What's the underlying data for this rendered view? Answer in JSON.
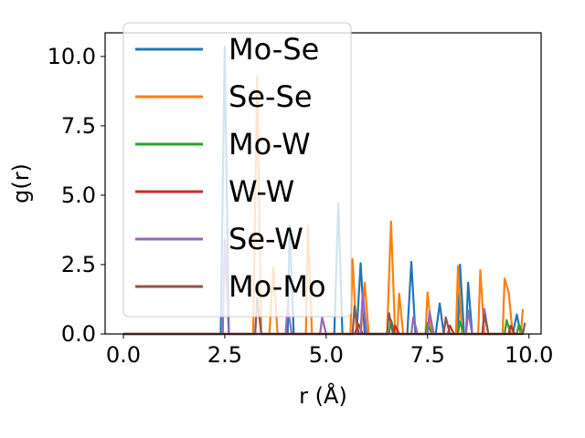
{
  "chart_data": {
    "type": "line",
    "title": "",
    "xlabel": "r (Å)",
    "ylabel": "g(r)",
    "xlim": [
      -0.45,
      10.3
    ],
    "ylim": [
      0,
      10.85
    ],
    "xticks": [
      0.0,
      2.5,
      5.0,
      7.5,
      10.0
    ],
    "xtick_labels": [
      "0.0",
      "2.5",
      "5.0",
      "7.5",
      "10.0"
    ],
    "yticks": [
      0.0,
      2.5,
      5.0,
      7.5,
      10.0
    ],
    "ytick_labels": [
      "0.0",
      "2.5",
      "5.0",
      "7.5",
      "10.0"
    ],
    "grid": false,
    "legend_position": "upper-left",
    "series": [
      {
        "name": "Mo-Se",
        "color": "#1f77b4",
        "points": [
          [
            0,
            0
          ],
          [
            2.4,
            0
          ],
          [
            2.5,
            10.35
          ],
          [
            2.6,
            0
          ],
          [
            4.05,
            0
          ],
          [
            4.1,
            3.9
          ],
          [
            4.2,
            0
          ],
          [
            5.2,
            0
          ],
          [
            5.3,
            4.7
          ],
          [
            5.4,
            0
          ],
          [
            5.75,
            0
          ],
          [
            5.85,
            2.55
          ],
          [
            5.95,
            0
          ],
          [
            7.0,
            0
          ],
          [
            7.1,
            2.6
          ],
          [
            7.2,
            0
          ],
          [
            7.7,
            0
          ],
          [
            7.8,
            1.1
          ],
          [
            7.9,
            0
          ],
          [
            8.25,
            0
          ],
          [
            8.3,
            2.5
          ],
          [
            8.4,
            0
          ],
          [
            8.45,
            0
          ],
          [
            8.5,
            1.85
          ],
          [
            8.6,
            0
          ],
          [
            9.6,
            0
          ],
          [
            9.7,
            0.7
          ],
          [
            9.8,
            0
          ]
        ]
      },
      {
        "name": "Se-Se",
        "color": "#ff7f0e",
        "points": [
          [
            0,
            0
          ],
          [
            3.2,
            0
          ],
          [
            3.3,
            9.3
          ],
          [
            3.4,
            0
          ],
          [
            3.6,
            0
          ],
          [
            3.7,
            2.4
          ],
          [
            3.8,
            0
          ],
          [
            4.5,
            0
          ],
          [
            4.55,
            3.9
          ],
          [
            4.65,
            0
          ],
          [
            5.6,
            0
          ],
          [
            5.65,
            2.7
          ],
          [
            5.75,
            0
          ],
          [
            5.85,
            0
          ],
          [
            5.95,
            1.85
          ],
          [
            6.05,
            0
          ],
          [
            6.5,
            0
          ],
          [
            6.6,
            4.05
          ],
          [
            6.7,
            0
          ],
          [
            6.75,
            0
          ],
          [
            6.8,
            1.45
          ],
          [
            6.9,
            0
          ],
          [
            7.45,
            0
          ],
          [
            7.5,
            1.5
          ],
          [
            7.6,
            0
          ],
          [
            8.2,
            0
          ],
          [
            8.25,
            2.45
          ],
          [
            8.35,
            0
          ],
          [
            8.75,
            0
          ],
          [
            8.8,
            2.3
          ],
          [
            8.9,
            0
          ],
          [
            9.35,
            0
          ],
          [
            9.4,
            2.0
          ],
          [
            9.5,
            1.5
          ],
          [
            9.6,
            0
          ],
          [
            9.8,
            0
          ],
          [
            9.85,
            0.9
          ]
        ]
      },
      {
        "name": "Mo-W",
        "color": "#2ca02c",
        "points": [
          [
            0,
            0
          ],
          [
            6.55,
            0
          ],
          [
            6.6,
            0.5
          ],
          [
            6.7,
            0
          ],
          [
            7.45,
            0
          ],
          [
            7.5,
            0.4
          ],
          [
            7.6,
            0
          ],
          [
            8.25,
            0
          ],
          [
            8.3,
            0.45
          ],
          [
            8.4,
            0
          ],
          [
            9.4,
            0
          ],
          [
            9.45,
            0.5
          ],
          [
            9.55,
            0
          ],
          [
            9.7,
            0
          ],
          [
            9.75,
            0.35
          ],
          [
            9.85,
            0
          ]
        ]
      },
      {
        "name": "W-W",
        "color": "#d62728",
        "points": [
          [
            0,
            0
          ],
          [
            5.7,
            0
          ],
          [
            5.8,
            0.35
          ],
          [
            5.9,
            0
          ],
          [
            6.65,
            0
          ],
          [
            6.7,
            0.3
          ],
          [
            6.8,
            0
          ],
          [
            8.0,
            0
          ],
          [
            8.05,
            0.3
          ],
          [
            8.15,
            0
          ],
          [
            9.5,
            0
          ],
          [
            9.55,
            0.3
          ],
          [
            9.65,
            0
          ]
        ]
      },
      {
        "name": "Se-W",
        "color": "#9467bd",
        "points": [
          [
            0,
            0
          ],
          [
            2.45,
            0
          ],
          [
            2.5,
            3.4
          ],
          [
            2.6,
            0
          ],
          [
            4.0,
            0
          ],
          [
            4.05,
            1.0
          ],
          [
            4.15,
            0
          ],
          [
            4.85,
            0
          ],
          [
            4.9,
            0.6
          ],
          [
            5.0,
            0
          ],
          [
            5.85,
            0
          ],
          [
            5.9,
            1.5
          ],
          [
            6.0,
            0
          ],
          [
            7.1,
            0
          ],
          [
            7.15,
            0.6
          ],
          [
            7.25,
            0
          ],
          [
            7.5,
            0
          ],
          [
            7.55,
            0.8
          ],
          [
            7.65,
            0
          ],
          [
            8.45,
            0
          ],
          [
            8.5,
            0.85
          ],
          [
            8.6,
            0
          ],
          [
            8.85,
            0
          ],
          [
            8.9,
            0.9
          ],
          [
            9.0,
            0
          ]
        ]
      },
      {
        "name": "Mo-Mo",
        "color": "#8c564b",
        "points": [
          [
            0,
            0
          ],
          [
            3.25,
            0
          ],
          [
            3.3,
            1.3
          ],
          [
            3.4,
            0
          ],
          [
            5.65,
            0
          ],
          [
            5.7,
            1.0
          ],
          [
            5.8,
            0
          ],
          [
            6.5,
            0
          ],
          [
            6.55,
            0.75
          ],
          [
            6.65,
            0
          ],
          [
            7.9,
            0
          ],
          [
            7.95,
            0.6
          ],
          [
            8.05,
            0
          ],
          [
            8.85,
            0
          ],
          [
            8.9,
            0.7
          ],
          [
            9.0,
            0
          ],
          [
            9.85,
            0
          ],
          [
            9.9,
            0.4
          ]
        ]
      }
    ]
  }
}
